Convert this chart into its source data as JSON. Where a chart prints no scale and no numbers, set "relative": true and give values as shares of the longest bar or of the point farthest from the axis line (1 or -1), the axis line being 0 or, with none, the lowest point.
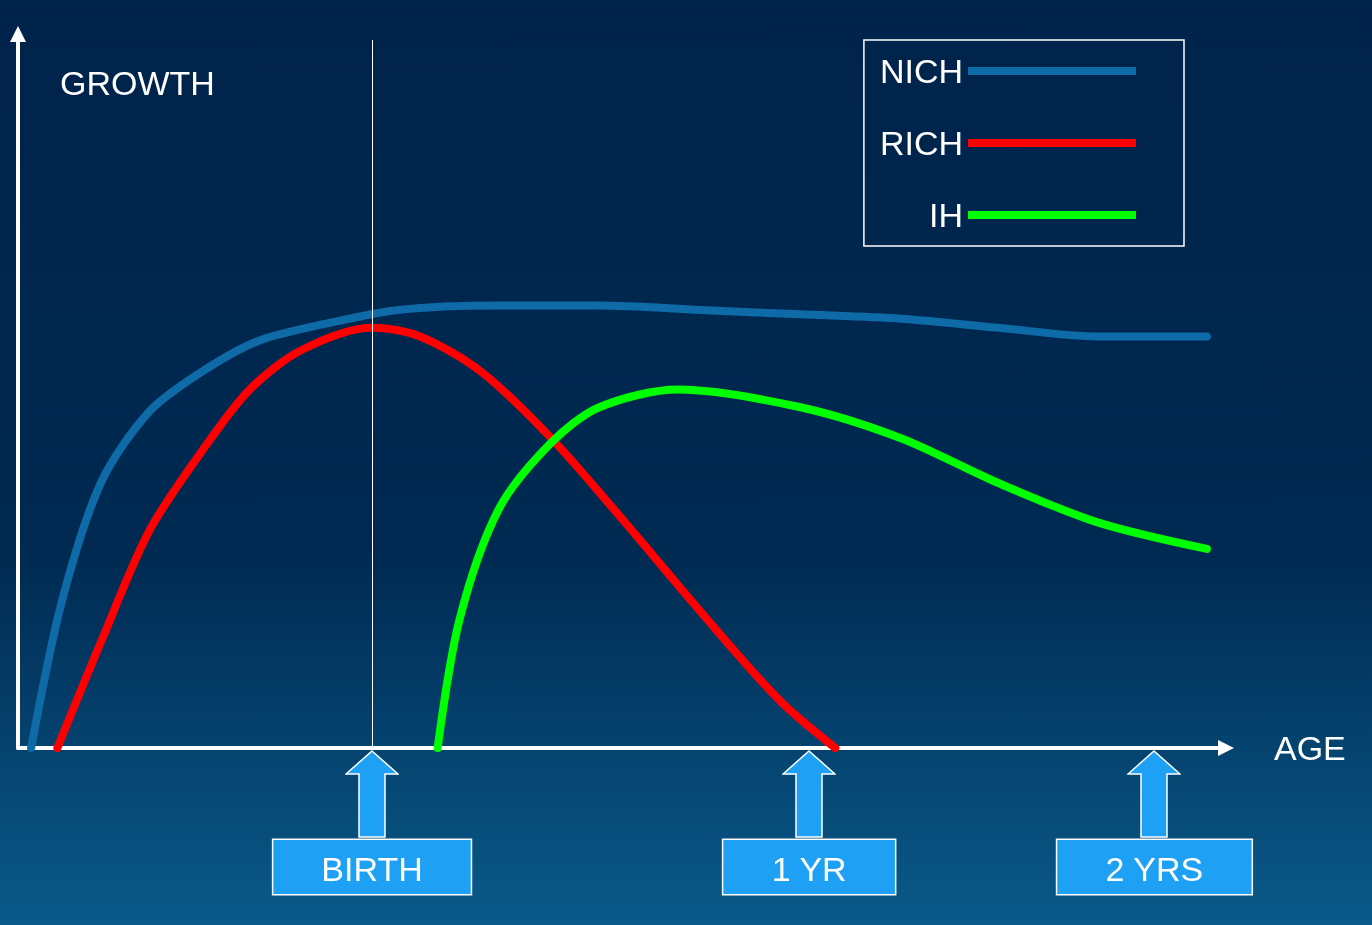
{
  "chart_data": {
    "type": "line",
    "relative": true,
    "xlabel": "AGE",
    "annotations": [
      "GROWTH"
    ],
    "legend": "top right",
    "grid": false,
    "marker": "none",
    "line_style": "solid",
    "xlim": [
      -0.81,
      1.94
    ],
    "xticks": [
      {
        "value": 0,
        "label": "BIRTH"
      },
      {
        "value": 1,
        "label": "1 YR"
      },
      {
        "value": 1.79,
        "label": "2 YRS"
      }
    ],
    "ref_lines": [
      {
        "axis": "x",
        "value": 0,
        "color": "#ffffff"
      }
    ],
    "series": [
      {
        "name": "NICH",
        "color": "#0f6aa8",
        "x": [
          -0.78,
          -0.71,
          -0.62,
          -0.51,
          -0.39,
          -0.26,
          -0.1,
          0.06,
          0.29,
          0.52,
          0.75,
          0.98,
          1.21,
          1.43,
          1.66,
          1.91
        ],
        "values": [
          0,
          0.33,
          0.6,
          0.76,
          0.85,
          0.92,
          0.96,
          0.99,
          1,
          1,
          0.99,
          0.98,
          0.97,
          0.95,
          0.93,
          0.93
        ]
      },
      {
        "name": "RICH",
        "color": "#ff0000",
        "x": [
          -0.72,
          -0.62,
          -0.51,
          -0.39,
          -0.28,
          -0.16,
          0,
          0.11,
          0.25,
          0.41,
          0.57,
          0.75,
          0.93,
          1.06
        ],
        "values": [
          0,
          0.24,
          0.49,
          0.67,
          0.81,
          0.9,
          0.95,
          0.93,
          0.85,
          0.7,
          0.52,
          0.31,
          0.11,
          0
        ]
      },
      {
        "name": "IH",
        "color": "#00ff00",
        "x": [
          0.15,
          0.2,
          0.29,
          0.41,
          0.52,
          0.7,
          0.98,
          1.21,
          1.43,
          1.66,
          1.91
        ],
        "values": [
          0,
          0.29,
          0.54,
          0.69,
          0.77,
          0.81,
          0.77,
          0.7,
          0.6,
          0.51,
          0.45
        ]
      }
    ]
  }
}
